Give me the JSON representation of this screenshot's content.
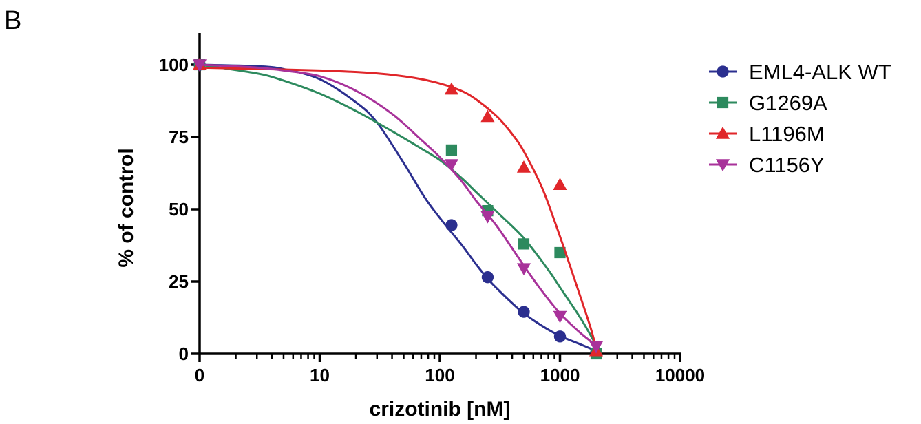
{
  "panel_label": "B",
  "chart_data": {
    "type": "line",
    "xlabel": "crizotinib [nM]",
    "ylabel": "% of control",
    "x_scale": "log",
    "x_zero_label": "0",
    "x_ticks": [
      {
        "value": 1,
        "label": "0"
      },
      {
        "value": 10,
        "label": "10"
      },
      {
        "value": 100,
        "label": "100"
      },
      {
        "value": 1000,
        "label": "1000"
      },
      {
        "value": 10000,
        "label": "10000"
      }
    ],
    "y_ticks": [
      {
        "value": 0,
        "label": "0"
      },
      {
        "value": 25,
        "label": "25"
      },
      {
        "value": 50,
        "label": "50"
      },
      {
        "value": 75,
        "label": "75"
      },
      {
        "value": 100,
        "label": "100"
      }
    ],
    "xlim": [
      1,
      10000
    ],
    "ylim": [
      0,
      110
    ],
    "grid": false,
    "legend_position": "top-right",
    "series": [
      {
        "name": "EML4-ALK WT",
        "color": "#2b2f8f",
        "marker": "circle",
        "points": [
          [
            0,
            100
          ],
          [
            125,
            44.5
          ],
          [
            250,
            26.5
          ],
          [
            500,
            14.5
          ],
          [
            1000,
            6
          ],
          [
            2000,
            0.5
          ]
        ],
        "fit": [
          [
            1,
            100
          ],
          [
            3,
            99.5
          ],
          [
            5,
            98.5
          ],
          [
            10,
            95
          ],
          [
            20,
            87
          ],
          [
            30,
            80
          ],
          [
            50,
            66
          ],
          [
            75,
            54
          ],
          [
            100,
            47
          ],
          [
            125,
            42
          ],
          [
            150,
            38
          ],
          [
            200,
            31
          ],
          [
            250,
            26
          ],
          [
            300,
            22.5
          ],
          [
            400,
            17.5
          ],
          [
            500,
            14
          ],
          [
            700,
            9.8
          ],
          [
            1000,
            6.2
          ],
          [
            1500,
            3.2
          ],
          [
            2000,
            1
          ]
        ]
      },
      {
        "name": "G1269A",
        "color": "#2d8a5e",
        "marker": "square",
        "points": [
          [
            0,
            100
          ],
          [
            125,
            70.5
          ],
          [
            250,
            49.5
          ],
          [
            500,
            38
          ],
          [
            1000,
            35
          ],
          [
            2000,
            0
          ]
        ],
        "fit": [
          [
            1,
            100
          ],
          [
            3,
            97
          ],
          [
            5,
            94.5
          ],
          [
            10,
            90
          ],
          [
            20,
            84
          ],
          [
            40,
            77
          ],
          [
            70,
            71
          ],
          [
            100,
            67
          ],
          [
            150,
            61
          ],
          [
            200,
            56
          ],
          [
            300,
            49
          ],
          [
            500,
            40
          ],
          [
            800,
            29
          ],
          [
            1000,
            23
          ],
          [
            1500,
            12
          ],
          [
            2000,
            3
          ]
        ]
      },
      {
        "name": "L1196M",
        "color": "#e0262a",
        "marker": "triangle-up",
        "points": [
          [
            0,
            100
          ],
          [
            125,
            91.5
          ],
          [
            250,
            82
          ],
          [
            500,
            64.5
          ],
          [
            1000,
            58.5
          ],
          [
            2000,
            1
          ]
        ],
        "fit": [
          [
            1,
            99
          ],
          [
            10,
            98
          ],
          [
            30,
            97
          ],
          [
            60,
            95.5
          ],
          [
            100,
            93.5
          ],
          [
            150,
            91
          ],
          [
            200,
            88
          ],
          [
            300,
            82
          ],
          [
            400,
            76
          ],
          [
            500,
            70
          ],
          [
            700,
            58
          ],
          [
            900,
            46
          ],
          [
            1200,
            31
          ],
          [
            1500,
            19
          ],
          [
            1800,
            9
          ],
          [
            2000,
            2
          ]
        ]
      },
      {
        "name": "C1156Y",
        "color": "#a8329a",
        "marker": "triangle-down",
        "points": [
          [
            0,
            100
          ],
          [
            125,
            65.5
          ],
          [
            250,
            47.5
          ],
          [
            500,
            29.5
          ],
          [
            1000,
            13
          ],
          [
            2000,
            2.5
          ]
        ],
        "fit": [
          [
            1,
            100
          ],
          [
            3,
            99
          ],
          [
            5,
            98
          ],
          [
            10,
            96
          ],
          [
            20,
            91
          ],
          [
            40,
            83
          ],
          [
            70,
            74
          ],
          [
            100,
            68
          ],
          [
            150,
            60
          ],
          [
            200,
            53
          ],
          [
            300,
            44
          ],
          [
            500,
            30.5
          ],
          [
            700,
            22
          ],
          [
            1000,
            14
          ],
          [
            1500,
            7
          ],
          [
            2000,
            3
          ]
        ]
      }
    ]
  }
}
